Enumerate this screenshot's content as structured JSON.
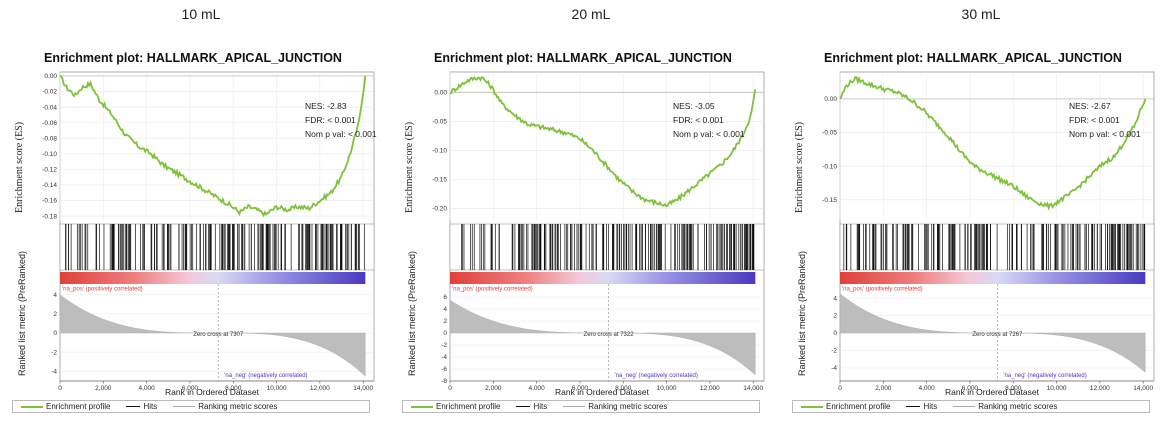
{
  "column_titles": [
    "10 mL",
    "20 mL",
    "30 mL"
  ],
  "colors": {
    "profile": "#7ec23a",
    "hits": "#111111",
    "ranking": "#bdbdbd",
    "pos": "#e0403a",
    "neg": "#4a3ac0"
  },
  "chart_data": [
    {
      "type": "line",
      "title": "Enrichment plot: HALLMARK_APICAL_JUNCTION",
      "ylabel": "Enrichment score (ES)",
      "ylabel_ranked": "Ranked list metric (PreRanked)",
      "xlabel": "Rank in Ordered Dataset",
      "xlim": [
        0,
        14500
      ],
      "ylim": [
        -0.185,
        0.005
      ],
      "yticks": [
        0.0,
        -0.02,
        -0.04,
        -0.06,
        -0.08,
        -0.1,
        -0.12,
        -0.14,
        -0.16,
        -0.18
      ],
      "ytick_labels": [
        "0.00",
        "-0.02",
        "-0.04",
        "-0.06",
        "-0.08",
        "-0.10",
        "-0.12",
        "-0.14",
        "-0.16",
        "-0.18"
      ],
      "xticks": [
        0,
        2000,
        4000,
        6000,
        8000,
        10000,
        12000,
        14000
      ],
      "xtick_labels": [
        "0",
        "2,000",
        "4,000",
        "6,000",
        "8,000",
        "10,000",
        "12,000",
        "14,000"
      ],
      "es_x": [
        0,
        300,
        700,
        1000,
        1400,
        1800,
        2400,
        3000,
        3600,
        4200,
        4800,
        5400,
        6000,
        6600,
        7200,
        7800,
        8300,
        8700,
        9100,
        9500,
        10000,
        10500,
        11000,
        11500,
        12000,
        12500,
        13000,
        13400,
        13800,
        14100
      ],
      "es_y": [
        0.0,
        -0.015,
        -0.025,
        -0.015,
        -0.01,
        -0.03,
        -0.05,
        -0.075,
        -0.09,
        -0.1,
        -0.115,
        -0.125,
        -0.135,
        -0.145,
        -0.155,
        -0.165,
        -0.175,
        -0.168,
        -0.172,
        -0.178,
        -0.168,
        -0.172,
        -0.168,
        -0.17,
        -0.16,
        -0.15,
        -0.13,
        -0.1,
        -0.06,
        0.0
      ],
      "ranked_ylim": [
        -5,
        5
      ],
      "ranked_yticks": [
        4,
        2,
        0,
        -2,
        -4
      ],
      "ranked_ytick_labels": [
        "4",
        "2",
        "0",
        "-2",
        "-4"
      ],
      "ranked_start": 4,
      "ranked_end": -4.5,
      "zero_cross": 7307,
      "stats": {
        "nes": "NES: -2.83",
        "fdr": "FDR: < 0.001",
        "nomp": "Nom p val: < 0.001"
      },
      "zero_cross_label": "Zero cross at 7307",
      "pos_label": "'na_pos' (positively correlated)",
      "neg_label": "'na_neg' (negatively correlated)",
      "legend": [
        "Enrichment profile",
        "Hits",
        "Ranking metric scores"
      ]
    },
    {
      "type": "line",
      "title": "Enrichment plot: HALLMARK_APICAL_JUNCTION",
      "ylabel": "Enrichment score (ES)",
      "ylabel_ranked": "Ranked list metric (PreRanked)",
      "xlabel": "Rank in Ordered Dataset",
      "xlim": [
        0,
        14500
      ],
      "ylim": [
        -0.22,
        0.035
      ],
      "yticks": [
        0.0,
        -0.05,
        -0.1,
        -0.15,
        -0.2
      ],
      "ytick_labels": [
        "0.00",
        "-0.05",
        "-0.10",
        "-0.15",
        "-0.20"
      ],
      "xticks": [
        0,
        2000,
        4000,
        6000,
        8000,
        10000,
        12000,
        14000
      ],
      "xtick_labels": [
        "0",
        "2,000",
        "4,000",
        "6,000",
        "8,000",
        "10,000",
        "12,000",
        "14,000"
      ],
      "es_x": [
        0,
        400,
        800,
        1200,
        1500,
        1900,
        2400,
        3000,
        3600,
        4200,
        4800,
        5400,
        6000,
        6600,
        7200,
        7800,
        8400,
        9000,
        9500,
        10000,
        10500,
        11000,
        11500,
        12000,
        12500,
        13000,
        13500,
        13900,
        14100
      ],
      "es_y": [
        0.0,
        0.01,
        0.02,
        0.025,
        0.025,
        0.01,
        -0.02,
        -0.04,
        -0.055,
        -0.06,
        -0.065,
        -0.07,
        -0.08,
        -0.1,
        -0.125,
        -0.15,
        -0.17,
        -0.185,
        -0.19,
        -0.195,
        -0.185,
        -0.17,
        -0.155,
        -0.14,
        -0.125,
        -0.105,
        -0.075,
        -0.04,
        0.005
      ],
      "ranked_ylim": [
        -8,
        8
      ],
      "ranked_yticks": [
        6,
        4,
        2,
        0,
        -2,
        -4,
        -6,
        -8
      ],
      "ranked_ytick_labels": [
        "6",
        "4",
        "2",
        "0",
        "-2",
        "-4",
        "-6",
        "-8"
      ],
      "ranked_start": 5.5,
      "ranked_end": -7,
      "zero_cross": 7322,
      "stats": {
        "nes": "NES: -3.05",
        "fdr": "FDR: < 0.001",
        "nomp": "Nom p val: < 0.001"
      },
      "zero_cross_label": "Zero cross at 7322",
      "pos_label": "'na_pos' (positively correlated)",
      "neg_label": "'na_neg' (negatively correlated)",
      "legend": [
        "Enrichment profile",
        "Hits",
        "Ranking metric scores"
      ]
    },
    {
      "type": "line",
      "title": "Enrichment plot: HALLMARK_APICAL_JUNCTION",
      "ylabel": "Enrichment score (ES)",
      "ylabel_ranked": "Ranked list metric (PreRanked)",
      "xlabel": "Rank in Ordered Dataset",
      "xlim": [
        0,
        14500
      ],
      "ylim": [
        -0.18,
        0.04
      ],
      "yticks": [
        0.0,
        -0.05,
        -0.1,
        -0.15
      ],
      "ytick_labels": [
        "0.00",
        "-0.05",
        "-0.10",
        "-0.15"
      ],
      "xticks": [
        0,
        2000,
        4000,
        6000,
        8000,
        10000,
        12000,
        14000
      ],
      "xtick_labels": [
        "0",
        "2,000",
        "4,000",
        "6,000",
        "8,000",
        "10,000",
        "12,000",
        "14,000"
      ],
      "es_x": [
        0,
        300,
        700,
        1100,
        1500,
        2000,
        2600,
        3200,
        3800,
        4400,
        5000,
        5600,
        6200,
        6800,
        7400,
        8000,
        8600,
        9200,
        9700,
        10200,
        10700,
        11200,
        11700,
        12200,
        12700,
        13200,
        13600,
        13900,
        14100
      ],
      "es_y": [
        0.0,
        0.02,
        0.03,
        0.025,
        0.02,
        0.015,
        0.01,
        0.0,
        -0.015,
        -0.035,
        -0.055,
        -0.08,
        -0.1,
        -0.11,
        -0.12,
        -0.13,
        -0.145,
        -0.155,
        -0.16,
        -0.15,
        -0.14,
        -0.125,
        -0.11,
        -0.095,
        -0.085,
        -0.06,
        -0.04,
        -0.015,
        0.0
      ],
      "ranked_ylim": [
        -5.5,
        5.5
      ],
      "ranked_yticks": [
        4,
        2,
        0,
        -2,
        -4
      ],
      "ranked_ytick_labels": [
        "4",
        "2",
        "0",
        "-2",
        "-4"
      ],
      "ranked_start": 4.5,
      "ranked_end": -4.5,
      "zero_cross": 7267,
      "stats": {
        "nes": "NES: -2.67",
        "fdr": "FDR: < 0.001",
        "nomp": "Nom p val: < 0.001"
      },
      "zero_cross_label": "Zero cross at 7267",
      "pos_label": "'na_pos' (positively correlated)",
      "neg_label": "'na_neg' (negatively correlated)",
      "legend": [
        "Enrichment profile",
        "Hits",
        "Ranking metric scores"
      ]
    }
  ]
}
